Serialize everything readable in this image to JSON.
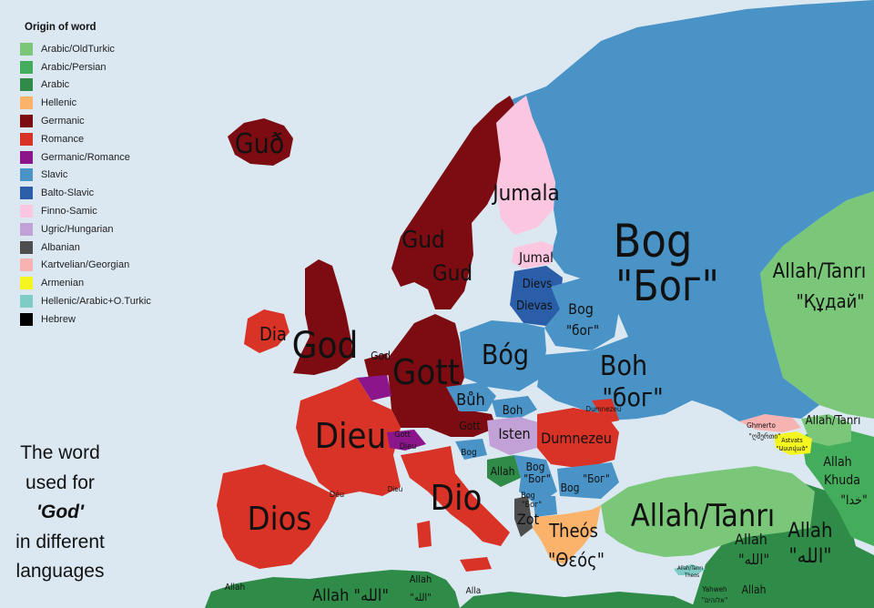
{
  "legend": {
    "title": "Origin of word",
    "items": [
      {
        "label": "Arabic/OldTurkic",
        "color": "#7ac77a"
      },
      {
        "label": "Arabic/Persian",
        "color": "#44ad5c"
      },
      {
        "label": "Arabic",
        "color": "#2e8b48"
      },
      {
        "label": "Hellenic",
        "color": "#fbb26a"
      },
      {
        "label": "Germanic",
        "color": "#7d0c12"
      },
      {
        "label": "Romance",
        "color": "#d93226"
      },
      {
        "label": "Germanic/Romance",
        "color": "#8b168b"
      },
      {
        "label": "Slavic",
        "color": "#4a93c7"
      },
      {
        "label": "Balto-Slavic",
        "color": "#2a5ea8"
      },
      {
        "label": "Finno-Samic",
        "color": "#fbc6e0"
      },
      {
        "label": "Ugric/Hungarian",
        "color": "#c2a2d6"
      },
      {
        "label": "Albanian",
        "color": "#4d4d4d"
      },
      {
        "label": "Kartvelian/Georgian",
        "color": "#f7b2b2"
      },
      {
        "label": "Armenian",
        "color": "#f5f520"
      },
      {
        "label": "Hellenic/Arabic+O.Turkic",
        "color": "#7fcbc6"
      },
      {
        "label": "Hebrew",
        "color": "#000000"
      }
    ]
  },
  "caption": {
    "line1": "The word",
    "line2": "used for",
    "line3": "'God'",
    "line4": "in different",
    "line5": "languages"
  },
  "map_labels": {
    "iceland": "Guð",
    "norway": "Gud",
    "sweden": "Gud",
    "finland": "Jumala",
    "estonia": "Jumal",
    "latvia": "Dievs",
    "lithuania": "Dievas",
    "belarus_latin": "Bog",
    "belarus_cyr": "\"бог\"",
    "russia_latin": "Bog",
    "russia_cyr": "\"Бог\"",
    "kazakhstan_latin": "Allah/Tanrı",
    "kazakhstan_cyr": "\"Құдай\"",
    "ireland": "Dia",
    "britain": "God",
    "netherlands": "God",
    "belgium": "God\nDieu",
    "germany": "Gott",
    "poland": "Bóg",
    "ukraine_latin": "Boh",
    "ukraine_cyr": "\"бог\"",
    "czech": "Bůh",
    "slovakia": "Boh",
    "austria": "Gott",
    "hungary": "Isten",
    "romania": "Dumnezeu",
    "moldova": "Dumnezeu",
    "france": "Dieu",
    "switzerland": "Gott\nDieu",
    "spain": "Dios",
    "italy": "Dio",
    "andorra": "Déu",
    "monaco": "Dieu",
    "slovenia": "Bog",
    "bosnia": "Allah",
    "serbia": "Bog\n\"Бог\"",
    "bulgaria": "Bog\n\"Бог\"",
    "montenegro": "Bog\n\"Бог\"",
    "albania": "Zot",
    "greece_latin": "Theós",
    "greece_greek": "\"Θεός\"",
    "turkey": "Allah/Tanrı",
    "georgia_latin": "Ghmerto",
    "georgia_geo": "\"ღმერთი\"",
    "armenia": "Astvats\n\"Աստված\"",
    "azerbaijan": "Allah/Tanrı",
    "iran_latin": "Allah\nKhuda",
    "iran_ar": "\"خدا\"",
    "iraq": "Allah",
    "iraq_ar": "\"الله\"",
    "syria": "Allah",
    "syria_ar": "\"الله\"",
    "cyprus": "Allah/Tanrı\nTheos",
    "israel": "Yahweh\n\"אלוהים\"",
    "lebanon": "Allah",
    "algeria": "Allah",
    "tunisia": "Allah",
    "tunisia_ar": "\"الله\"",
    "libya": "Allah \"الله\"",
    "malta": "Alla"
  }
}
